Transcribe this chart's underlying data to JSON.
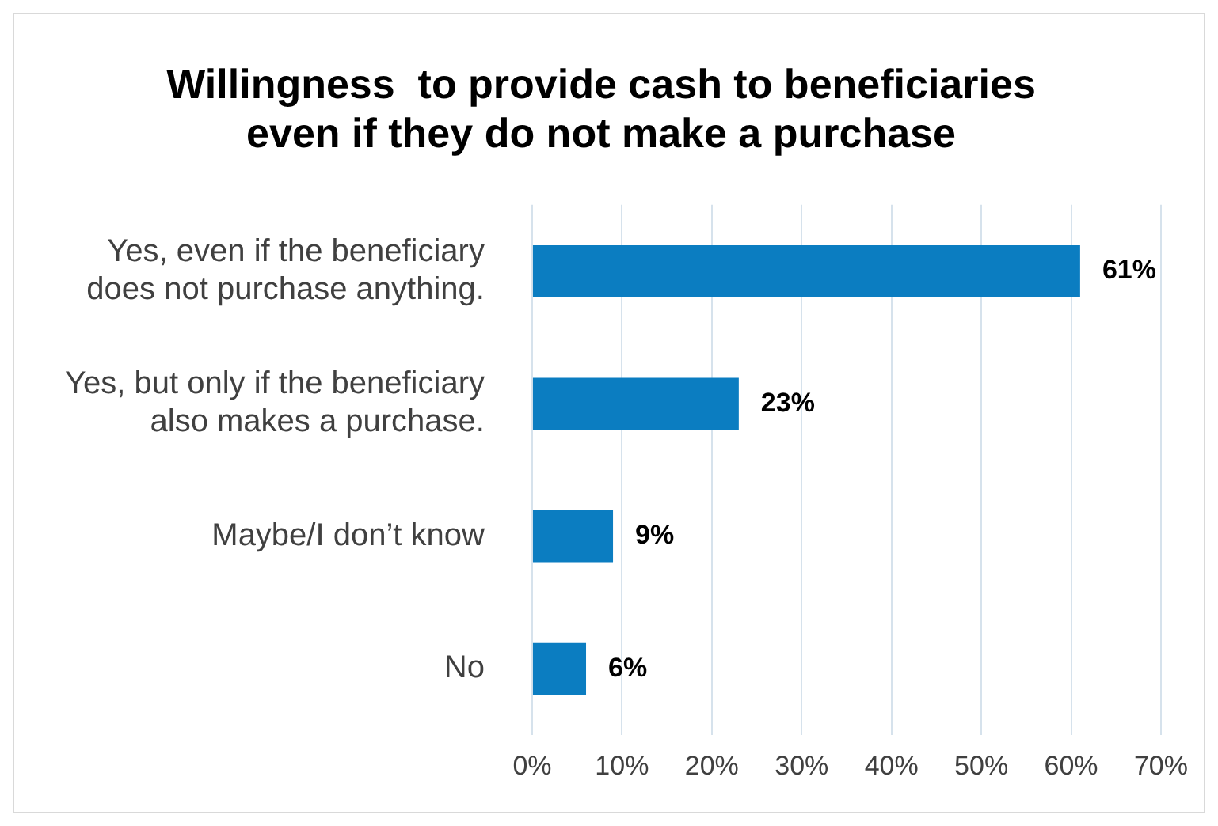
{
  "chart_data": {
    "type": "bar",
    "orientation": "horizontal",
    "title": "Willingness  to provide cash to beneficiaries\neven if they do not make a purchase",
    "categories": [
      "Yes, even if the beneficiary\ndoes not purchase anything.",
      "Yes, but only if the beneficiary\nalso makes a purchase.",
      "Maybe/I don’t know",
      "No"
    ],
    "values": [
      61,
      23,
      9,
      6
    ],
    "color": "#0b7dc1",
    "value_labels": [
      "61%",
      "23%",
      "9%",
      "6%"
    ],
    "xlim": [
      0,
      70
    ],
    "xticks": [
      {
        "value": 0,
        "label": "0%"
      },
      {
        "value": 10,
        "label": "10%"
      },
      {
        "value": 20,
        "label": "20%"
      },
      {
        "value": 30,
        "label": "30%"
      },
      {
        "value": 40,
        "label": "40%"
      },
      {
        "value": 50,
        "label": "50%"
      },
      {
        "value": 60,
        "label": "60%"
      },
      {
        "value": 70,
        "label": "70%"
      }
    ],
    "grid": "x"
  }
}
